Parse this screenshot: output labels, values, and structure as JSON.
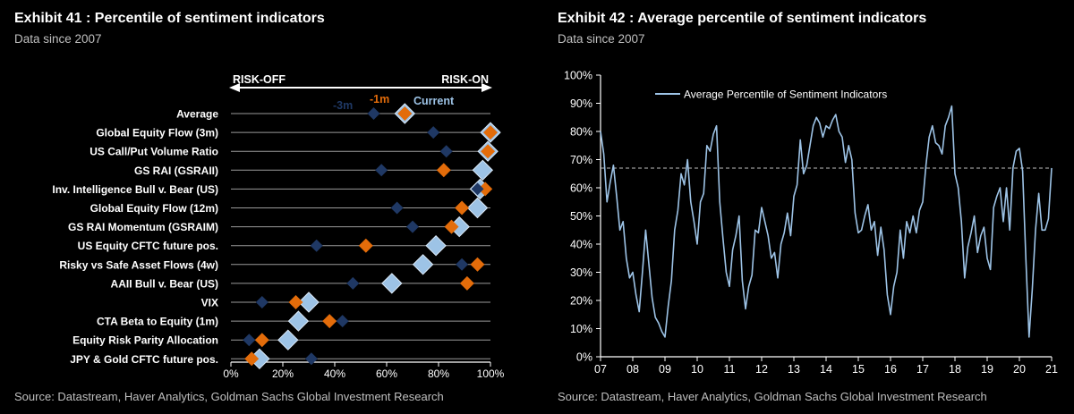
{
  "exhibit41": {
    "title": "Exhibit 41 : Percentile of sentiment indicators",
    "subtitle": "Data since 2007",
    "source": "Source: Datastream, Haver Analytics, Goldman Sachs Global Investment Research"
  },
  "exhibit42": {
    "title": "Exhibit 42 : Average percentile of sentiment indicators",
    "subtitle": "Data since 2007",
    "source": "Source: Datastream, Haver Analytics, Goldman Sachs Global Investment Research"
  },
  "chart_data": [
    {
      "type": "scatter",
      "risk_off_label": "RISK-OFF",
      "risk_on_label": "RISK-ON",
      "categories": [
        "Average",
        "Global Equity Flow (3m)",
        "US Call/Put Volume Ratio",
        "GS RAI (GSRAII)",
        "Inv. Intelligence Bull v. Bear (US)",
        "Global Equity Flow (12m)",
        "GS RAI Momentum (GSRAIM)",
        "US Equity CFTC future pos.",
        "Risky vs Safe Asset Flows (4w)",
        "AAII Bull v. Bear (US)",
        "VIX",
        "CTA Beta to Equity (1m)",
        "Equity Risk Parity Allocation",
        "JPY & Gold CFTC future pos."
      ],
      "x_ticks": [
        "0%",
        "20%",
        "40%",
        "60%",
        "80%",
        "100%"
      ],
      "xlim": [
        0,
        100
      ],
      "series": [
        {
          "name": "-3m",
          "color": "#1f3864",
          "values": [
            55,
            78,
            83,
            58,
            95,
            64,
            70,
            33,
            89,
            47,
            12,
            43,
            7,
            31
          ]
        },
        {
          "name": "-1m",
          "color": "#e36c0a",
          "values": [
            67,
            100,
            99,
            82,
            98,
            89,
            85,
            52,
            95,
            91,
            25,
            38,
            12,
            8
          ]
        },
        {
          "name": "Current",
          "color": "#9dc3e6",
          "values": [
            67,
            100,
            99,
            97,
            96,
            95,
            88,
            79,
            74,
            62,
            30,
            26,
            22,
            11
          ]
        }
      ]
    },
    {
      "type": "line",
      "legend": "Average Percentile of Sentiment Indicators",
      "x_ticks": [
        "07",
        "08",
        "09",
        "10",
        "11",
        "12",
        "13",
        "14",
        "15",
        "16",
        "17",
        "18",
        "19",
        "20",
        "21"
      ],
      "y_ticks": [
        "0%",
        "10%",
        "20%",
        "30%",
        "40%",
        "50%",
        "60%",
        "70%",
        "80%",
        "90%",
        "100%"
      ],
      "xlim": [
        2007,
        2021
      ],
      "ylim": [
        0,
        100
      ],
      "reference_line": 67,
      "color": "#9dc3e6",
      "x": [
        2007.0,
        2007.1,
        2007.2,
        2007.3,
        2007.4,
        2007.5,
        2007.6,
        2007.7,
        2007.8,
        2007.9,
        2008.0,
        2008.1,
        2008.2,
        2008.3,
        2008.4,
        2008.5,
        2008.6,
        2008.7,
        2008.8,
        2008.9,
        2009.0,
        2009.1,
        2009.2,
        2009.3,
        2009.4,
        2009.5,
        2009.6,
        2009.7,
        2009.8,
        2009.9,
        2010.0,
        2010.1,
        2010.2,
        2010.3,
        2010.4,
        2010.5,
        2010.6,
        2010.7,
        2010.8,
        2010.9,
        2011.0,
        2011.1,
        2011.2,
        2011.3,
        2011.4,
        2011.5,
        2011.6,
        2011.7,
        2011.8,
        2011.9,
        2012.0,
        2012.1,
        2012.2,
        2012.3,
        2012.4,
        2012.5,
        2012.6,
        2012.7,
        2012.8,
        2012.9,
        2013.0,
        2013.1,
        2013.2,
        2013.3,
        2013.4,
        2013.5,
        2013.6,
        2013.7,
        2013.8,
        2013.9,
        2014.0,
        2014.1,
        2014.2,
        2014.3,
        2014.4,
        2014.5,
        2014.6,
        2014.7,
        2014.8,
        2014.9,
        2015.0,
        2015.1,
        2015.2,
        2015.3,
        2015.4,
        2015.5,
        2015.6,
        2015.7,
        2015.8,
        2015.9,
        2016.0,
        2016.1,
        2016.2,
        2016.3,
        2016.4,
        2016.5,
        2016.6,
        2016.7,
        2016.8,
        2016.9,
        2017.0,
        2017.1,
        2017.2,
        2017.3,
        2017.4,
        2017.5,
        2017.6,
        2017.7,
        2017.8,
        2017.9,
        2018.0,
        2018.1,
        2018.2,
        2018.3,
        2018.4,
        2018.5,
        2018.6,
        2018.7,
        2018.8,
        2018.9,
        2019.0,
        2019.1,
        2019.2,
        2019.3,
        2019.4,
        2019.5,
        2019.6,
        2019.7,
        2019.8,
        2019.9,
        2020.0,
        2020.1,
        2020.2,
        2020.3,
        2020.4,
        2020.5,
        2020.6,
        2020.7,
        2020.8,
        2020.9,
        2021.0
      ],
      "values": [
        80,
        72,
        55,
        62,
        68,
        57,
        45,
        48,
        35,
        28,
        30,
        22,
        16,
        30,
        45,
        33,
        21,
        14,
        12,
        9,
        7,
        18,
        27,
        45,
        52,
        65,
        61,
        70,
        55,
        48,
        40,
        55,
        58,
        75,
        73,
        79,
        82,
        55,
        42,
        30,
        25,
        38,
        43,
        50,
        27,
        17,
        25,
        29,
        45,
        44,
        53,
        48,
        43,
        35,
        37,
        28,
        40,
        44,
        51,
        43,
        57,
        61,
        77,
        65,
        68,
        75,
        82,
        85,
        83,
        78,
        82,
        81,
        84,
        86,
        80,
        78,
        69,
        75,
        70,
        51,
        44,
        45,
        50,
        54,
        45,
        48,
        36,
        46,
        38,
        22,
        15,
        25,
        30,
        45,
        35,
        48,
        44,
        50,
        44,
        52,
        55,
        68,
        78,
        82,
        76,
        75,
        72,
        82,
        85,
        89,
        65,
        60,
        48,
        28,
        39,
        44,
        50,
        37,
        43,
        46,
        35,
        31,
        53,
        57,
        60,
        48,
        60,
        45,
        67,
        73,
        74,
        66,
        35,
        7,
        24,
        45,
        58,
        45,
        45,
        49,
        67
      ]
    }
  ]
}
